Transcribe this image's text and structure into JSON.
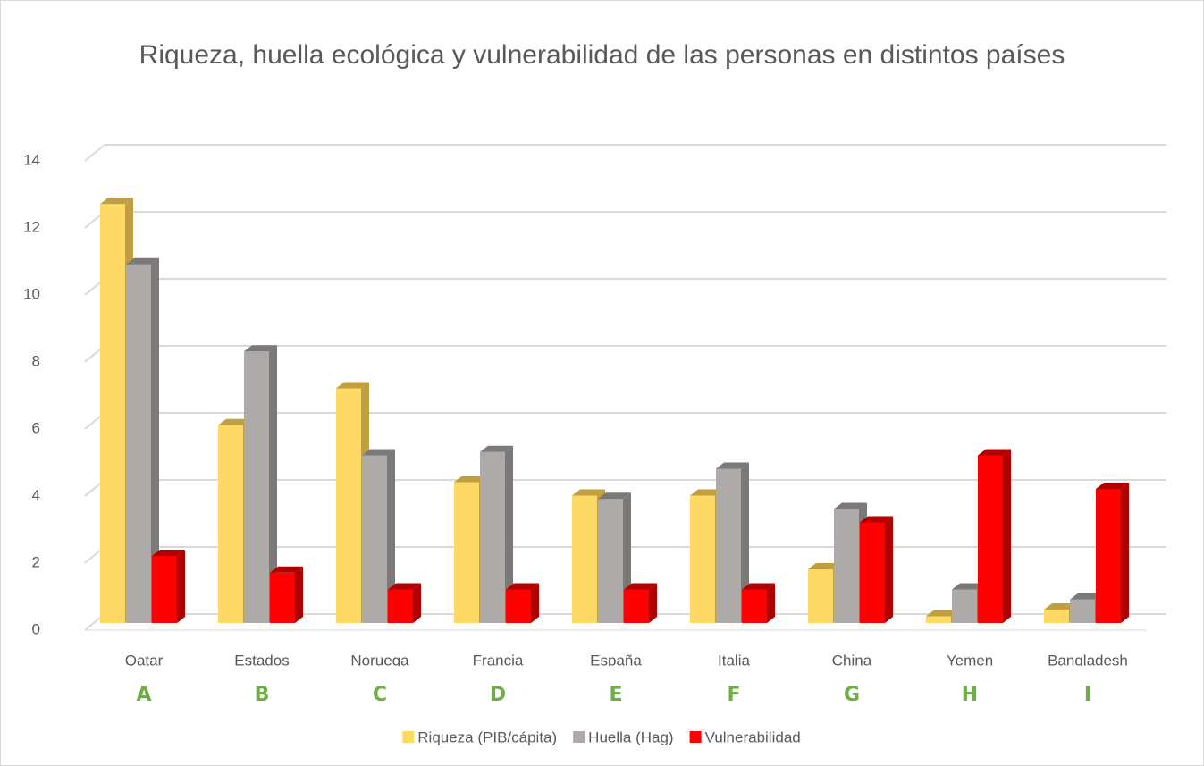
{
  "chart_data": {
    "type": "bar3d",
    "title": "Riqueza, huella ecológica y vulnerabilidad de las personas en distintos países",
    "categories": [
      "Qatar",
      "Estados",
      "Noruega",
      "Francia",
      "España",
      "Italia",
      "China",
      "Yemen",
      "Bangladesh"
    ],
    "group_labels": [
      "A",
      "B",
      "C",
      "D",
      "E",
      "F",
      "G",
      "H",
      "I"
    ],
    "series": [
      {
        "name": "Riqueza (PIB/cápita)",
        "color": "#ffd966",
        "side": "#bf9f3f",
        "values": [
          12.5,
          5.9,
          7.0,
          4.2,
          3.8,
          3.8,
          1.6,
          0.2,
          0.4
        ]
      },
      {
        "name": "Huella (Hag)",
        "color": "#aeaaaa",
        "side": "#7b7878",
        "values": [
          10.7,
          8.1,
          5.0,
          5.1,
          3.7,
          4.6,
          3.4,
          1.0,
          0.7
        ]
      },
      {
        "name": "Vulnerabilidad",
        "color": "#ff0000",
        "side": "#b00000",
        "values": [
          2.0,
          1.5,
          1.0,
          1.0,
          1.0,
          1.0,
          3.0,
          5.0,
          4.0
        ]
      }
    ],
    "ylim": [
      0,
      14
    ],
    "yticks": [
      0,
      2,
      4,
      6,
      8,
      10,
      12,
      14
    ],
    "grid": true,
    "legend": "bottom"
  }
}
